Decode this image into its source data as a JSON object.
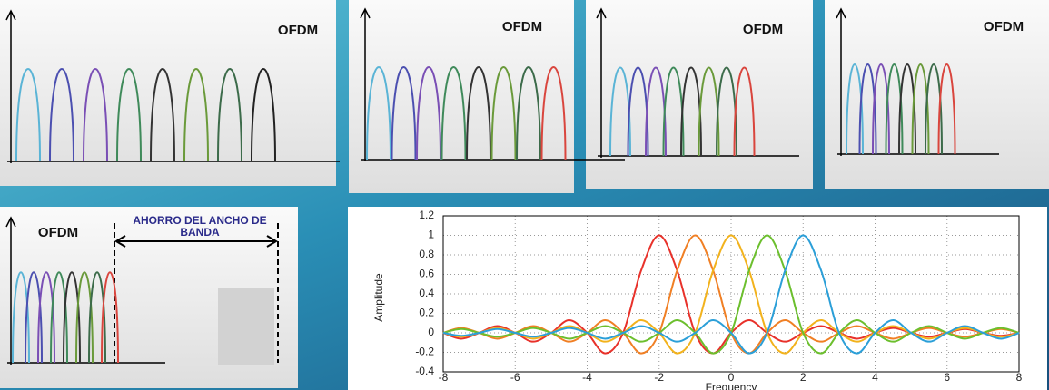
{
  "panels": [
    {
      "label": "OFDM"
    },
    {
      "label": "OFDM"
    },
    {
      "label": "OFDM"
    },
    {
      "label": "OFDM"
    }
  ],
  "savings_panel": {
    "label": "OFDM",
    "annotation": "AHORRO DEL ANCHO DE BANDA"
  },
  "chart_data": {
    "type": "line",
    "x_label": "Frequency",
    "y_label": "Amplitude",
    "x": [
      -8,
      -7.5,
      -7,
      -6.5,
      -6,
      -5.5,
      -5,
      -4.5,
      -4,
      -3.5,
      -3,
      -2.5,
      -2,
      -1.5,
      -1,
      -0.5,
      0,
      0.5,
      1,
      1.5,
      2,
      2.5,
      3,
      3.5,
      4,
      4.5,
      5,
      5.5,
      6,
      6.5,
      7,
      7.5,
      8
    ],
    "series": [
      {
        "color": "#e8312a",
        "values": [
          0,
          -0.06,
          0,
          0.07,
          0,
          -0.09,
          0,
          0.13,
          0,
          -0.21,
          0,
          0.64,
          1,
          0.64,
          0,
          -0.21,
          0,
          0.13,
          0,
          -0.09,
          0,
          0.07,
          0,
          -0.06,
          0,
          0.05,
          0,
          -0.04,
          0,
          0.04,
          0,
          -0.03,
          0
        ]
      },
      {
        "color": "#f07f24",
        "values": [
          0,
          0.05,
          0,
          -0.06,
          0,
          0.07,
          0,
          -0.09,
          0,
          0.13,
          0,
          -0.21,
          0,
          0.64,
          1,
          0.64,
          0,
          -0.21,
          0,
          0.13,
          0,
          -0.09,
          0,
          0.07,
          0,
          -0.06,
          0,
          0.05,
          0,
          -0.04,
          0,
          0.04,
          0
        ]
      },
      {
        "color": "#f2b21c",
        "values": [
          0,
          -0.04,
          0,
          0.05,
          0,
          -0.06,
          0,
          0.07,
          0,
          -0.09,
          0,
          0.13,
          0,
          -0.21,
          0,
          0.64,
          1,
          0.64,
          0,
          -0.21,
          0,
          0.13,
          0,
          -0.09,
          0,
          0.07,
          0,
          -0.06,
          0,
          0.05,
          0,
          -0.04,
          0
        ]
      },
      {
        "color": "#6cbf2e",
        "values": [
          0,
          0.04,
          0,
          -0.04,
          0,
          0.05,
          0,
          -0.06,
          0,
          0.07,
          0,
          -0.09,
          0,
          0.13,
          0,
          -0.21,
          0,
          0.64,
          1,
          0.64,
          0,
          -0.21,
          0,
          0.13,
          0,
          -0.09,
          0,
          0.07,
          0,
          -0.06,
          0,
          0.05,
          0
        ]
      },
      {
        "color": "#2b9fd8",
        "values": [
          0,
          -0.03,
          0,
          0.04,
          0,
          -0.04,
          0,
          0.05,
          0,
          -0.06,
          0,
          0.07,
          0,
          -0.09,
          0,
          0.13,
          0,
          -0.21,
          0,
          0.64,
          1,
          0.64,
          0,
          -0.21,
          0,
          0.13,
          0,
          -0.09,
          0,
          0.07,
          0,
          -0.06,
          0
        ]
      }
    ],
    "xlim": [
      -8,
      8
    ],
    "xticks": [
      -8,
      -6,
      -4,
      -2,
      0,
      2,
      4,
      6,
      8
    ],
    "ylim": [
      -0.4,
      1.2
    ],
    "yticks": [
      -0.4,
      -0.2,
      0,
      0.2,
      0.4,
      0.6,
      0.8,
      1,
      1.2
    ],
    "grid": true
  }
}
